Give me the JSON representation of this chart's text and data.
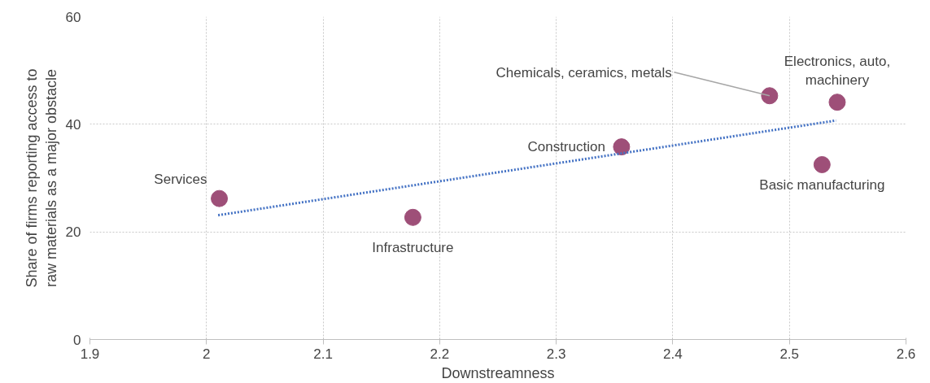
{
  "chart_data": {
    "type": "scatter",
    "xlabel": "Downstreamness",
    "ylabel": "Share of firms reporting access to\nraw materials as a major obstacle",
    "x": [
      2.011,
      2.177,
      2.356,
      2.483,
      2.541,
      2.528
    ],
    "series": [
      {
        "color": "#9e4f78",
        "values": [
          26.2,
          22.7,
          35.8,
          45.3,
          44.1,
          32.5
        ],
        "marker": "circle"
      },
      {
        "type": "line",
        "color": "#4472c4",
        "x": [
          2.01,
          2.54
        ],
        "values": [
          23.1,
          40.7
        ],
        "line_style": "dotted",
        "marker": "none"
      }
    ],
    "annotations": [
      {
        "text": "Services",
        "x": 2.011,
        "y": 26.2
      },
      {
        "text": "Infrastructure",
        "x": 2.177,
        "y": 22.7
      },
      {
        "text": "Construction",
        "x": 2.356,
        "y": 35.8
      },
      {
        "text": "Chemicals, ceramics, metals",
        "x": 2.483,
        "y": 45.3
      },
      {
        "text": "Electronics, auto,\nmachinery",
        "x": 2.541,
        "y": 44.1
      },
      {
        "text": "Basic manufacturing",
        "x": 2.528,
        "y": 32.5
      }
    ],
    "xlim": [
      1.9,
      2.6
    ],
    "ylim": [
      0,
      60
    ],
    "xticks": [
      1.9,
      2,
      2.1,
      2.2,
      2.3,
      2.4,
      2.5,
      2.6
    ],
    "yticks": [
      0,
      20,
      40,
      60
    ],
    "grid": true
  }
}
